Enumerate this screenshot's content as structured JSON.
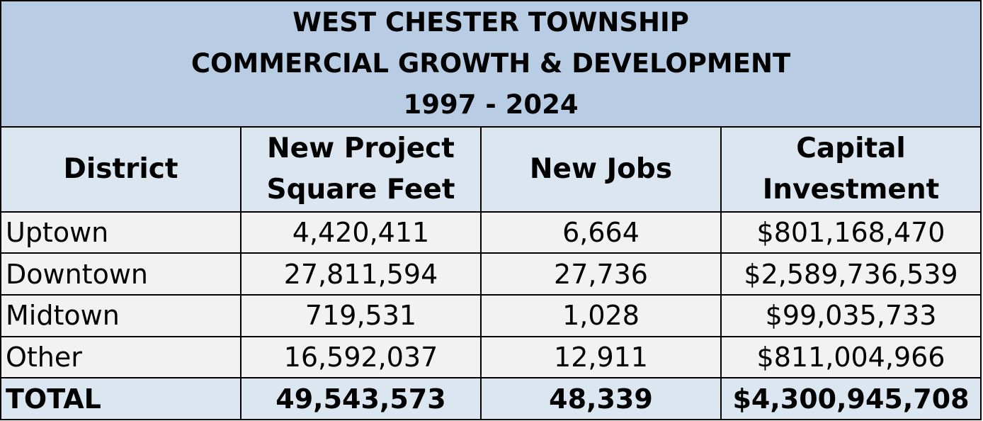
{
  "title": {
    "line1": "WEST CHESTER TOWNSHIP",
    "line2": "COMMERCIAL GROWTH & DEVELOPMENT",
    "line3": "1997 - 2024"
  },
  "headers": {
    "district": "District",
    "square_feet_1": "New Project",
    "square_feet_2": "Square Feet",
    "jobs": "New Jobs",
    "investment_1": "Capital",
    "investment_2": "Investment"
  },
  "rows": [
    {
      "district": "Uptown",
      "square_feet": "4,420,411",
      "jobs": "6,664",
      "investment": "$801,168,470"
    },
    {
      "district": "Downtown",
      "square_feet": "27,811,594",
      "jobs": "27,736",
      "investment": "$2,589,736,539"
    },
    {
      "district": "Midtown",
      "square_feet": "719,531",
      "jobs": "1,028",
      "investment": "$99,035,733"
    },
    {
      "district": "Other",
      "square_feet": "16,592,037",
      "jobs": "12,911",
      "investment": "$811,004,966"
    }
  ],
  "total": {
    "district": "TOTAL",
    "square_feet": "49,543,573",
    "jobs": "48,339",
    "investment": "$4,300,945,708"
  },
  "colors": {
    "title_bg": "#b8cce4",
    "header_bg": "#dce6f1",
    "row_bg": "#f2f2f2",
    "total_bg": "#dce6f1"
  }
}
